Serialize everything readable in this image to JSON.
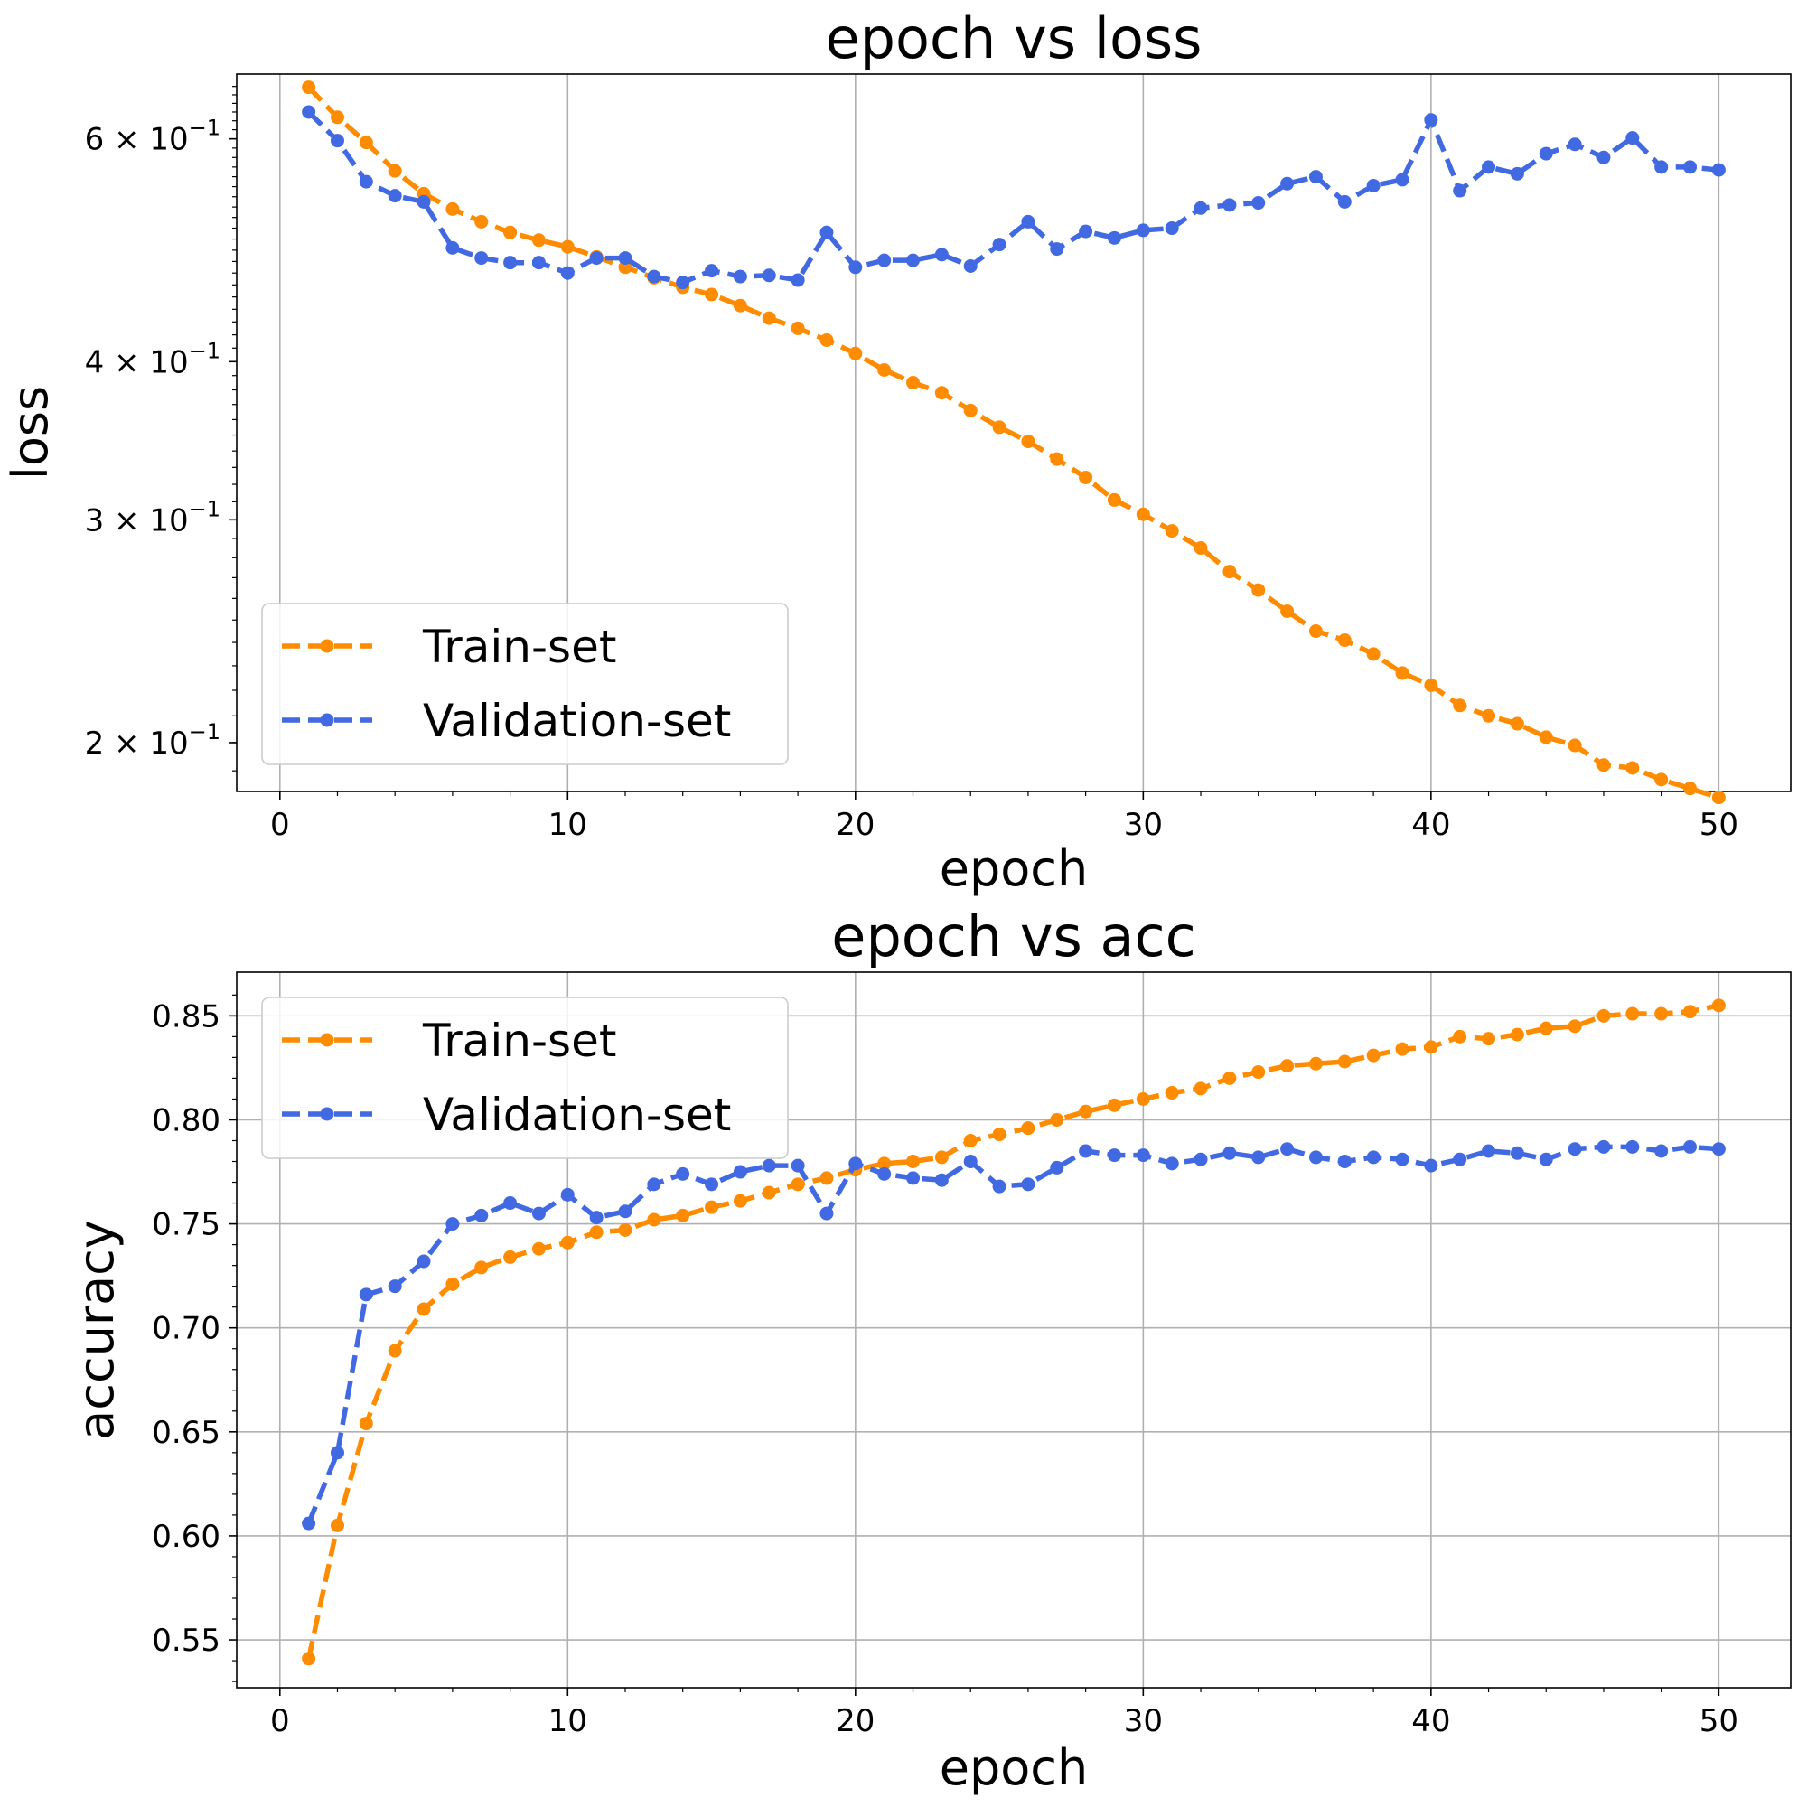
{
  "colors": {
    "train": "#ff8c00",
    "validation": "#4169e1",
    "grid": "#b0b0b0"
  },
  "chart_data": [
    {
      "type": "line",
      "title": "epoch vs loss",
      "xlabel": "epoch",
      "ylabel": "loss",
      "yscale": "log",
      "grid": "x-only",
      "legend_placement": "lower-left",
      "xlim": [
        -1.5,
        52.5
      ],
      "ylim": [
        0.183,
        0.675
      ],
      "xticks": [
        0,
        10,
        20,
        30,
        40,
        50
      ],
      "xtick_labels": [
        "0",
        "10",
        "20",
        "30",
        "40",
        "50"
      ],
      "yticks": [
        0.2,
        0.3,
        0.4,
        0.6
      ],
      "ytick_labels": [
        {
          "base": "2 × 10",
          "exp": "−1"
        },
        {
          "base": "3 × 10",
          "exp": "−1"
        },
        {
          "base": "4 × 10",
          "exp": "−1"
        },
        {
          "base": "6 × 10",
          "exp": "−1"
        }
      ],
      "x": [
        1,
        2,
        3,
        4,
        5,
        6,
        7,
        8,
        9,
        10,
        11,
        12,
        13,
        14,
        15,
        16,
        17,
        18,
        19,
        20,
        21,
        22,
        23,
        24,
        25,
        26,
        27,
        28,
        29,
        30,
        31,
        32,
        33,
        34,
        35,
        36,
        37,
        38,
        39,
        40,
        41,
        42,
        43,
        44,
        45,
        46,
        47,
        48,
        49,
        50
      ],
      "series": [
        {
          "name": "Train-set",
          "color_key": "train",
          "values": [
            0.659,
            0.624,
            0.596,
            0.566,
            0.543,
            0.528,
            0.516,
            0.506,
            0.499,
            0.493,
            0.484,
            0.475,
            0.466,
            0.458,
            0.452,
            0.443,
            0.433,
            0.425,
            0.416,
            0.406,
            0.394,
            0.385,
            0.378,
            0.366,
            0.355,
            0.346,
            0.335,
            0.324,
            0.311,
            0.303,
            0.294,
            0.285,
            0.273,
            0.264,
            0.254,
            0.245,
            0.241,
            0.235,
            0.227,
            0.222,
            0.214,
            0.21,
            0.207,
            0.202,
            0.199,
            0.192,
            0.191,
            0.187,
            0.184,
            0.181
          ]
        },
        {
          "name": "Validation-set",
          "color_key": "validation",
          "values": [
            0.63,
            0.598,
            0.555,
            0.541,
            0.535,
            0.492,
            0.483,
            0.479,
            0.479,
            0.47,
            0.483,
            0.483,
            0.467,
            0.462,
            0.472,
            0.467,
            0.468,
            0.464,
            0.506,
            0.475,
            0.481,
            0.481,
            0.486,
            0.476,
            0.495,
            0.516,
            0.491,
            0.507,
            0.501,
            0.508,
            0.51,
            0.529,
            0.532,
            0.534,
            0.553,
            0.56,
            0.535,
            0.551,
            0.557,
            0.621,
            0.546,
            0.57,
            0.563,
            0.584,
            0.594,
            0.58,
            0.601,
            0.57,
            0.57,
            0.567
          ]
        }
      ],
      "legend": [
        "Train-set",
        "Validation-set"
      ]
    },
    {
      "type": "line",
      "title": "epoch vs acc",
      "xlabel": "epoch",
      "ylabel": "accuracy",
      "yscale": "linear",
      "grid": "both",
      "legend_placement": "upper-left",
      "xlim": [
        -1.5,
        52.5
      ],
      "ylim": [
        0.527,
        0.871
      ],
      "xticks": [
        0,
        10,
        20,
        30,
        40,
        50
      ],
      "xtick_labels": [
        "0",
        "10",
        "20",
        "30",
        "40",
        "50"
      ],
      "yticks": [
        0.55,
        0.6,
        0.65,
        0.7,
        0.75,
        0.8,
        0.85
      ],
      "ytick_labels": [
        "0.55",
        "0.60",
        "0.65",
        "0.70",
        "0.75",
        "0.80",
        "0.85"
      ],
      "x": [
        1,
        2,
        3,
        4,
        5,
        6,
        7,
        8,
        9,
        10,
        11,
        12,
        13,
        14,
        15,
        16,
        17,
        18,
        19,
        20,
        21,
        22,
        23,
        24,
        25,
        26,
        27,
        28,
        29,
        30,
        31,
        32,
        33,
        34,
        35,
        36,
        37,
        38,
        39,
        40,
        41,
        42,
        43,
        44,
        45,
        46,
        47,
        48,
        49,
        50
      ],
      "series": [
        {
          "name": "Train-set",
          "color_key": "train",
          "values": [
            0.541,
            0.605,
            0.654,
            0.689,
            0.709,
            0.721,
            0.729,
            0.734,
            0.738,
            0.741,
            0.746,
            0.747,
            0.752,
            0.754,
            0.758,
            0.761,
            0.765,
            0.769,
            0.772,
            0.776,
            0.779,
            0.78,
            0.782,
            0.79,
            0.793,
            0.796,
            0.8,
            0.804,
            0.807,
            0.81,
            0.813,
            0.815,
            0.82,
            0.823,
            0.826,
            0.827,
            0.828,
            0.831,
            0.834,
            0.835,
            0.84,
            0.839,
            0.841,
            0.844,
            0.845,
            0.85,
            0.851,
            0.851,
            0.852,
            0.855
          ]
        },
        {
          "name": "Validation-set",
          "color_key": "validation",
          "values": [
            0.606,
            0.64,
            0.716,
            0.72,
            0.732,
            0.75,
            0.754,
            0.76,
            0.755,
            0.764,
            0.753,
            0.756,
            0.769,
            0.774,
            0.769,
            0.775,
            0.778,
            0.778,
            0.755,
            0.779,
            0.774,
            0.772,
            0.771,
            0.78,
            0.768,
            0.769,
            0.777,
            0.785,
            0.783,
            0.783,
            0.779,
            0.781,
            0.784,
            0.782,
            0.786,
            0.782,
            0.78,
            0.782,
            0.781,
            0.778,
            0.781,
            0.785,
            0.784,
            0.781,
            0.786,
            0.787,
            0.787,
            0.785,
            0.787,
            0.786
          ]
        }
      ],
      "legend": [
        "Train-set",
        "Validation-set"
      ]
    }
  ]
}
